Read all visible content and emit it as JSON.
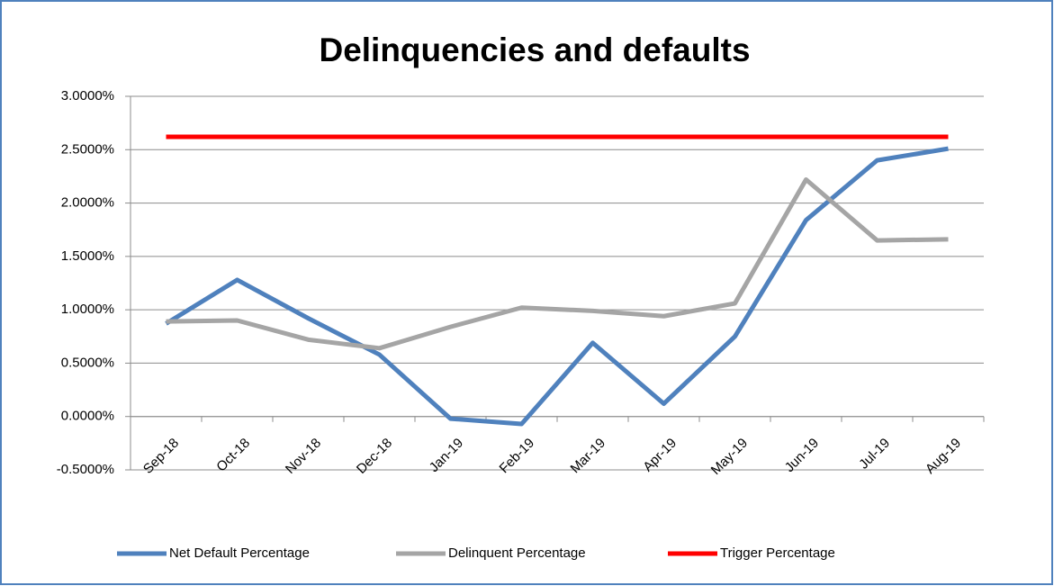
{
  "chart_data": {
    "type": "line",
    "title": "Delinquencies and defaults",
    "categories": [
      "Sep-18",
      "Oct-18",
      "Nov-18",
      "Dec-18",
      "Jan-19",
      "Feb-19",
      "Mar-19",
      "Apr-19",
      "May-19",
      "Jun-19",
      "Jul-19",
      "Aug-19"
    ],
    "series": [
      {
        "name": "Net Default Percentage",
        "color": "#4f81bd",
        "values": [
          0.87,
          1.28,
          0.92,
          0.58,
          -0.02,
          -0.07,
          0.69,
          0.12,
          0.75,
          1.84,
          2.4,
          2.51
        ]
      },
      {
        "name": "Delinquent Percentage",
        "color": "#a5a5a5",
        "values": [
          0.89,
          0.9,
          0.72,
          0.64,
          0.84,
          1.02,
          0.99,
          0.94,
          1.06,
          2.22,
          1.65,
          1.66
        ]
      },
      {
        "name": "Trigger Percentage",
        "color": "#ff0000",
        "values": [
          2.62,
          2.62,
          2.62,
          2.62,
          2.62,
          2.62,
          2.62,
          2.62,
          2.62,
          2.62,
          2.62,
          2.62
        ]
      }
    ],
    "ylim": [
      -0.5,
      3
    ],
    "yticks": [
      {
        "value": -0.5,
        "label": "-0.5000%"
      },
      {
        "value": 0,
        "label": "0.0000%"
      },
      {
        "value": 0.5,
        "label": "0.5000%"
      },
      {
        "value": 1,
        "label": "1.0000%"
      },
      {
        "value": 1.5,
        "label": "1.5000%"
      },
      {
        "value": 2,
        "label": "2.0000%"
      },
      {
        "value": 2.5,
        "label": "2.5000%"
      },
      {
        "value": 3,
        "label": "3.0000%"
      }
    ],
    "grid": true,
    "legend": "bottom"
  }
}
